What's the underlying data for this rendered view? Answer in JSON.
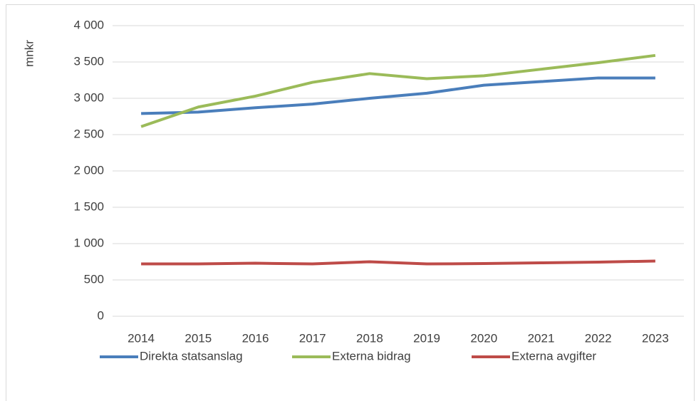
{
  "chart_data": {
    "type": "line",
    "y_label": "mnkr",
    "categories": [
      "2014",
      "2015",
      "2016",
      "2017",
      "2018",
      "2019",
      "2020",
      "2021",
      "2022",
      "2023"
    ],
    "series": [
      {
        "name": "Direkta statsanslag",
        "color": "#4a7ebb",
        "values": [
          2790,
          2810,
          2870,
          2920,
          3000,
          3070,
          3180,
          3230,
          3280,
          3280
        ]
      },
      {
        "name": "Externa bidrag",
        "color": "#9bbb59",
        "values": [
          2610,
          2880,
          3030,
          3220,
          3340,
          3270,
          3310,
          3400,
          3490,
          3590
        ]
      },
      {
        "name": "Externa avgifter",
        "color": "#be4b48",
        "values": [
          720,
          720,
          730,
          720,
          750,
          720,
          725,
          735,
          745,
          760
        ]
      }
    ],
    "ylim": [
      0,
      4000
    ],
    "yticks": [
      0,
      500,
      {
        "value": 1000,
        "label": "1 000"
      },
      {
        "value": 1500,
        "label": "1 500"
      },
      {
        "value": 2000,
        "label": "2 000"
      },
      {
        "value": 2500,
        "label": "2 500"
      },
      {
        "value": 3000,
        "label": "3 000"
      },
      {
        "value": 3500,
        "label": "3 500"
      },
      {
        "value": 4000,
        "label": "4 000"
      }
    ],
    "grid": true,
    "legend": "bottom"
  }
}
